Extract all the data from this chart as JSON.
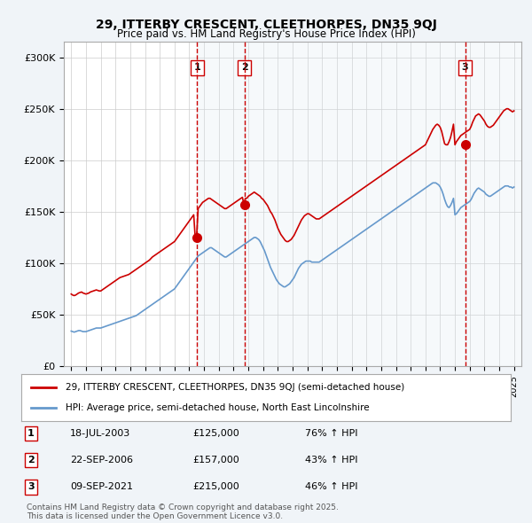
{
  "title1": "29, ITTERBY CRESCENT, CLEETHORPES, DN35 9QJ",
  "title2": "Price paid vs. HM Land Registry's House Price Index (HPI)",
  "bg_color": "#f0f4f8",
  "plot_bg_color": "#ffffff",
  "red_line_color": "#cc0000",
  "blue_line_color": "#6699cc",
  "sale_marker_color": "#cc0000",
  "annotation_shade_color": "#dce8f0",
  "annotation_line_color": "#cc0000",
  "ylabel_ticks": [
    "£0",
    "£50K",
    "£100K",
    "£150K",
    "£200K",
    "£250K",
    "£300K"
  ],
  "ytick_values": [
    0,
    50000,
    100000,
    150000,
    200000,
    250000,
    300000
  ],
  "ylim": [
    0,
    315000
  ],
  "xlim_start": 1994.5,
  "xlim_end": 2025.5,
  "sales": [
    {
      "label": "1",
      "date_num": 2003.54,
      "price": 125000,
      "date_str": "18-JUL-2003",
      "pct": "76%"
    },
    {
      "label": "2",
      "date_num": 2006.73,
      "price": 157000,
      "date_str": "22-SEP-2006",
      "pct": "43%"
    },
    {
      "label": "3",
      "date_num": 2021.69,
      "price": 215000,
      "date_str": "09-SEP-2021",
      "pct": "46%"
    }
  ],
  "legend_label_red": "29, ITTERBY CRESCENT, CLEETHORPES, DN35 9QJ (semi-detached house)",
  "legend_label_blue": "HPI: Average price, semi-detached house, North East Lincolnshire",
  "footnote": "Contains HM Land Registry data © Crown copyright and database right 2025.\nThis data is licensed under the Open Government Licence v3.0.",
  "red_line_data": {
    "x": [
      1995.0,
      1995.1,
      1995.2,
      1995.3,
      1995.4,
      1995.5,
      1995.6,
      1995.7,
      1995.8,
      1995.9,
      1996.0,
      1996.1,
      1996.2,
      1996.3,
      1996.4,
      1996.5,
      1996.6,
      1996.7,
      1996.8,
      1996.9,
      1997.0,
      1997.1,
      1997.2,
      1997.3,
      1997.4,
      1997.5,
      1997.6,
      1997.7,
      1997.8,
      1997.9,
      1998.0,
      1998.1,
      1998.2,
      1998.3,
      1998.4,
      1998.5,
      1998.6,
      1998.7,
      1998.8,
      1998.9,
      1999.0,
      1999.1,
      1999.2,
      1999.3,
      1999.4,
      1999.5,
      1999.6,
      1999.7,
      1999.8,
      1999.9,
      2000.0,
      2000.1,
      2000.2,
      2000.3,
      2000.4,
      2000.5,
      2000.6,
      2000.7,
      2000.8,
      2000.9,
      2001.0,
      2001.1,
      2001.2,
      2001.3,
      2001.4,
      2001.5,
      2001.6,
      2001.7,
      2001.8,
      2001.9,
      2002.0,
      2002.1,
      2002.2,
      2002.3,
      2002.4,
      2002.5,
      2002.6,
      2002.7,
      2002.8,
      2002.9,
      2003.0,
      2003.1,
      2003.2,
      2003.3,
      2003.4,
      2003.5,
      2003.6,
      2003.7,
      2003.8,
      2003.9,
      2004.0,
      2004.1,
      2004.2,
      2004.3,
      2004.4,
      2004.5,
      2004.6,
      2004.7,
      2004.8,
      2004.9,
      2005.0,
      2005.1,
      2005.2,
      2005.3,
      2005.4,
      2005.5,
      2005.6,
      2005.7,
      2005.8,
      2005.9,
      2006.0,
      2006.1,
      2006.2,
      2006.3,
      2006.4,
      2006.5,
      2006.6,
      2006.7,
      2006.8,
      2006.9,
      2007.0,
      2007.1,
      2007.2,
      2007.3,
      2007.4,
      2007.5,
      2007.6,
      2007.7,
      2007.8,
      2007.9,
      2008.0,
      2008.1,
      2008.2,
      2008.3,
      2008.4,
      2008.5,
      2008.6,
      2008.7,
      2008.8,
      2008.9,
      2009.0,
      2009.1,
      2009.2,
      2009.3,
      2009.4,
      2009.5,
      2009.6,
      2009.7,
      2009.8,
      2009.9,
      2010.0,
      2010.1,
      2010.2,
      2010.3,
      2010.4,
      2010.5,
      2010.6,
      2010.7,
      2010.8,
      2010.9,
      2011.0,
      2011.1,
      2011.2,
      2011.3,
      2011.4,
      2011.5,
      2011.6,
      2011.7,
      2011.8,
      2011.9,
      2012.0,
      2012.1,
      2012.2,
      2012.3,
      2012.4,
      2012.5,
      2012.6,
      2012.7,
      2012.8,
      2012.9,
      2013.0,
      2013.1,
      2013.2,
      2013.3,
      2013.4,
      2013.5,
      2013.6,
      2013.7,
      2013.8,
      2013.9,
      2014.0,
      2014.1,
      2014.2,
      2014.3,
      2014.4,
      2014.5,
      2014.6,
      2014.7,
      2014.8,
      2014.9,
      2015.0,
      2015.1,
      2015.2,
      2015.3,
      2015.4,
      2015.5,
      2015.6,
      2015.7,
      2015.8,
      2015.9,
      2016.0,
      2016.1,
      2016.2,
      2016.3,
      2016.4,
      2016.5,
      2016.6,
      2016.7,
      2016.8,
      2016.9,
      2017.0,
      2017.1,
      2017.2,
      2017.3,
      2017.4,
      2017.5,
      2017.6,
      2017.7,
      2017.8,
      2017.9,
      2018.0,
      2018.1,
      2018.2,
      2018.3,
      2018.4,
      2018.5,
      2018.6,
      2018.7,
      2018.8,
      2018.9,
      2019.0,
      2019.1,
      2019.2,
      2019.3,
      2019.4,
      2019.5,
      2019.6,
      2019.7,
      2019.8,
      2019.9,
      2020.0,
      2020.1,
      2020.2,
      2020.3,
      2020.4,
      2020.5,
      2020.6,
      2020.7,
      2020.8,
      2020.9,
      2021.0,
      2021.1,
      2021.2,
      2021.3,
      2021.4,
      2021.5,
      2021.6,
      2021.7,
      2021.8,
      2021.9,
      2022.0,
      2022.1,
      2022.2,
      2022.3,
      2022.4,
      2022.5,
      2022.6,
      2022.7,
      2022.8,
      2022.9,
      2023.0,
      2023.1,
      2023.2,
      2023.3,
      2023.4,
      2023.5,
      2023.6,
      2023.7,
      2023.8,
      2023.9,
      2024.0,
      2024.1,
      2024.2,
      2024.3,
      2024.4,
      2024.5,
      2024.6,
      2024.7,
      2024.8,
      2024.9,
      2025.0
    ],
    "y": [
      70000,
      69000,
      68500,
      69000,
      70000,
      71000,
      71500,
      72000,
      71000,
      70500,
      70000,
      70500,
      71000,
      72000,
      72500,
      73000,
      73500,
      74000,
      73500,
      73000,
      73000,
      74000,
      75000,
      76000,
      77000,
      78000,
      79000,
      80000,
      81000,
      82000,
      83000,
      84000,
      85000,
      86000,
      86500,
      87000,
      87500,
      88000,
      88500,
      89000,
      90000,
      91000,
      92000,
      93000,
      94000,
      95000,
      96000,
      97000,
      98000,
      99000,
      100000,
      101000,
      102000,
      103000,
      104500,
      106000,
      107000,
      108000,
      109000,
      110000,
      111000,
      112000,
      113000,
      114000,
      115000,
      116000,
      117000,
      118000,
      119000,
      120000,
      121000,
      123000,
      125000,
      127000,
      129000,
      131000,
      133000,
      135000,
      137000,
      139000,
      141000,
      143000,
      145000,
      147000,
      125000,
      127000,
      153000,
      155000,
      157000,
      159000,
      160000,
      161000,
      162000,
      163000,
      163000,
      162000,
      161000,
      160000,
      159000,
      158000,
      157000,
      156000,
      155000,
      154000,
      153000,
      153000,
      154000,
      155000,
      156000,
      157000,
      158000,
      159000,
      160000,
      161000,
      162000,
      163000,
      164000,
      157000,
      163000,
      163000,
      165000,
      166000,
      167000,
      168000,
      169000,
      168000,
      167000,
      166000,
      165000,
      163000,
      162000,
      160000,
      158000,
      156000,
      153000,
      150000,
      148000,
      145000,
      142000,
      138000,
      134000,
      131000,
      128000,
      126000,
      124000,
      122000,
      121000,
      121000,
      122000,
      123000,
      125000,
      127000,
      130000,
      133000,
      136000,
      139000,
      142000,
      144000,
      146000,
      147000,
      148000,
      148000,
      147000,
      146000,
      145000,
      144000,
      143000,
      143000,
      143000,
      144000,
      145000,
      146000,
      147000,
      148000,
      149000,
      150000,
      151000,
      152000,
      153000,
      154000,
      155000,
      156000,
      157000,
      158000,
      159000,
      160000,
      161000,
      162000,
      163000,
      164000,
      165000,
      166000,
      167000,
      168000,
      169000,
      170000,
      171000,
      172000,
      173000,
      174000,
      175000,
      176000,
      177000,
      178000,
      179000,
      180000,
      181000,
      182000,
      183000,
      184000,
      185000,
      186000,
      187000,
      188000,
      189000,
      190000,
      191000,
      192000,
      193000,
      194000,
      195000,
      196000,
      197000,
      198000,
      199000,
      200000,
      201000,
      202000,
      203000,
      204000,
      205000,
      206000,
      207000,
      208000,
      209000,
      210000,
      211000,
      212000,
      213000,
      214000,
      215000,
      218000,
      221000,
      224000,
      227000,
      230000,
      232000,
      234000,
      235000,
      234000,
      232000,
      228000,
      222000,
      216000,
      215000,
      215000,
      218000,
      222000,
      228000,
      235000,
      215000,
      218000,
      220000,
      222000,
      224000,
      225000,
      226000,
      227000,
      228000,
      229000,
      230000,
      233000,
      237000,
      240000,
      243000,
      244000,
      245000,
      244000,
      242000,
      240000,
      238000,
      235000,
      233000,
      232000,
      232000,
      233000,
      234000,
      236000,
      238000,
      240000,
      242000,
      244000,
      246000,
      248000,
      249000,
      250000,
      250000,
      249000,
      248000,
      247000,
      248000
    ]
  },
  "blue_line_data": {
    "x": [
      1995.0,
      1995.1,
      1995.2,
      1995.3,
      1995.4,
      1995.5,
      1995.6,
      1995.7,
      1995.8,
      1995.9,
      1996.0,
      1996.1,
      1996.2,
      1996.3,
      1996.4,
      1996.5,
      1996.6,
      1996.7,
      1996.8,
      1996.9,
      1997.0,
      1997.1,
      1997.2,
      1997.3,
      1997.4,
      1997.5,
      1997.6,
      1997.7,
      1997.8,
      1997.9,
      1998.0,
      1998.1,
      1998.2,
      1998.3,
      1998.4,
      1998.5,
      1998.6,
      1998.7,
      1998.8,
      1998.9,
      1999.0,
      1999.1,
      1999.2,
      1999.3,
      1999.4,
      1999.5,
      1999.6,
      1999.7,
      1999.8,
      1999.9,
      2000.0,
      2000.1,
      2000.2,
      2000.3,
      2000.4,
      2000.5,
      2000.6,
      2000.7,
      2000.8,
      2000.9,
      2001.0,
      2001.1,
      2001.2,
      2001.3,
      2001.4,
      2001.5,
      2001.6,
      2001.7,
      2001.8,
      2001.9,
      2002.0,
      2002.1,
      2002.2,
      2002.3,
      2002.4,
      2002.5,
      2002.6,
      2002.7,
      2002.8,
      2002.9,
      2003.0,
      2003.1,
      2003.2,
      2003.3,
      2003.4,
      2003.5,
      2003.6,
      2003.7,
      2003.8,
      2003.9,
      2004.0,
      2004.1,
      2004.2,
      2004.3,
      2004.4,
      2004.5,
      2004.6,
      2004.7,
      2004.8,
      2004.9,
      2005.0,
      2005.1,
      2005.2,
      2005.3,
      2005.4,
      2005.5,
      2005.6,
      2005.7,
      2005.8,
      2005.9,
      2006.0,
      2006.1,
      2006.2,
      2006.3,
      2006.4,
      2006.5,
      2006.6,
      2006.7,
      2006.8,
      2006.9,
      2007.0,
      2007.1,
      2007.2,
      2007.3,
      2007.4,
      2007.5,
      2007.6,
      2007.7,
      2007.8,
      2007.9,
      2008.0,
      2008.1,
      2008.2,
      2008.3,
      2008.4,
      2008.5,
      2008.6,
      2008.7,
      2008.8,
      2008.9,
      2009.0,
      2009.1,
      2009.2,
      2009.3,
      2009.4,
      2009.5,
      2009.6,
      2009.7,
      2009.8,
      2009.9,
      2010.0,
      2010.1,
      2010.2,
      2010.3,
      2010.4,
      2010.5,
      2010.6,
      2010.7,
      2010.8,
      2010.9,
      2011.0,
      2011.1,
      2011.2,
      2011.3,
      2011.4,
      2011.5,
      2011.6,
      2011.7,
      2011.8,
      2011.9,
      2012.0,
      2012.1,
      2012.2,
      2012.3,
      2012.4,
      2012.5,
      2012.6,
      2012.7,
      2012.8,
      2012.9,
      2013.0,
      2013.1,
      2013.2,
      2013.3,
      2013.4,
      2013.5,
      2013.6,
      2013.7,
      2013.8,
      2013.9,
      2014.0,
      2014.1,
      2014.2,
      2014.3,
      2014.4,
      2014.5,
      2014.6,
      2014.7,
      2014.8,
      2014.9,
      2015.0,
      2015.1,
      2015.2,
      2015.3,
      2015.4,
      2015.5,
      2015.6,
      2015.7,
      2015.8,
      2015.9,
      2016.0,
      2016.1,
      2016.2,
      2016.3,
      2016.4,
      2016.5,
      2016.6,
      2016.7,
      2016.8,
      2016.9,
      2017.0,
      2017.1,
      2017.2,
      2017.3,
      2017.4,
      2017.5,
      2017.6,
      2017.7,
      2017.8,
      2017.9,
      2018.0,
      2018.1,
      2018.2,
      2018.3,
      2018.4,
      2018.5,
      2018.6,
      2018.7,
      2018.8,
      2018.9,
      2019.0,
      2019.1,
      2019.2,
      2019.3,
      2019.4,
      2019.5,
      2019.6,
      2019.7,
      2019.8,
      2019.9,
      2020.0,
      2020.1,
      2020.2,
      2020.3,
      2020.4,
      2020.5,
      2020.6,
      2020.7,
      2020.8,
      2020.9,
      2021.0,
      2021.1,
      2021.2,
      2021.3,
      2021.4,
      2021.5,
      2021.6,
      2021.7,
      2021.8,
      2021.9,
      2022.0,
      2022.1,
      2022.2,
      2022.3,
      2022.4,
      2022.5,
      2022.6,
      2022.7,
      2022.8,
      2022.9,
      2023.0,
      2023.1,
      2023.2,
      2023.3,
      2023.4,
      2023.5,
      2023.6,
      2023.7,
      2023.8,
      2023.9,
      2024.0,
      2024.1,
      2024.2,
      2024.3,
      2024.4,
      2024.5,
      2024.6,
      2024.7,
      2024.8,
      2024.9,
      2025.0
    ],
    "y": [
      34000,
      33500,
      33000,
      33500,
      34000,
      34500,
      34500,
      34000,
      33500,
      33500,
      33500,
      34000,
      34500,
      35000,
      35500,
      36000,
      36500,
      37000,
      37000,
      37000,
      37000,
      37500,
      38000,
      38500,
      39000,
      39500,
      40000,
      40500,
      41000,
      41500,
      42000,
      42500,
      43000,
      43500,
      44000,
      44500,
      45000,
      45500,
      46000,
      46500,
      47000,
      47500,
      48000,
      48500,
      49000,
      50000,
      51000,
      52000,
      53000,
      54000,
      55000,
      56000,
      57000,
      58000,
      59000,
      60000,
      61000,
      62000,
      63000,
      64000,
      65000,
      66000,
      67000,
      68000,
      69000,
      70000,
      71000,
      72000,
      73000,
      74000,
      75000,
      77000,
      79000,
      81000,
      83000,
      85000,
      87000,
      89000,
      91000,
      93000,
      95000,
      97000,
      99000,
      101000,
      103000,
      105000,
      107000,
      108000,
      109000,
      110000,
      111000,
      112000,
      113000,
      114000,
      115000,
      115000,
      114000,
      113000,
      112000,
      111000,
      110000,
      109000,
      108000,
      107000,
      106000,
      106000,
      107000,
      108000,
      109000,
      110000,
      111000,
      112000,
      113000,
      114000,
      115000,
      116000,
      117000,
      118000,
      119000,
      120000,
      121000,
      122000,
      123000,
      124000,
      125000,
      125000,
      124000,
      123000,
      121000,
      118000,
      115000,
      112000,
      108000,
      104000,
      100000,
      96000,
      93000,
      90000,
      87000,
      84000,
      82000,
      80000,
      79000,
      78000,
      77000,
      77000,
      78000,
      79000,
      80000,
      82000,
      84000,
      86000,
      89000,
      92000,
      95000,
      97000,
      99000,
      100000,
      101000,
      102000,
      102000,
      102000,
      102000,
      101000,
      101000,
      101000,
      101000,
      101000,
      101000,
      102000,
      103000,
      104000,
      105000,
      106000,
      107000,
      108000,
      109000,
      110000,
      111000,
      112000,
      113000,
      114000,
      115000,
      116000,
      117000,
      118000,
      119000,
      120000,
      121000,
      122000,
      123000,
      124000,
      125000,
      126000,
      127000,
      128000,
      129000,
      130000,
      131000,
      132000,
      133000,
      134000,
      135000,
      136000,
      137000,
      138000,
      139000,
      140000,
      141000,
      142000,
      143000,
      144000,
      145000,
      146000,
      147000,
      148000,
      149000,
      150000,
      151000,
      152000,
      153000,
      154000,
      155000,
      156000,
      157000,
      158000,
      159000,
      160000,
      161000,
      162000,
      163000,
      164000,
      165000,
      166000,
      167000,
      168000,
      169000,
      170000,
      171000,
      172000,
      173000,
      174000,
      175000,
      176000,
      177000,
      178000,
      178000,
      178000,
      177000,
      176000,
      174000,
      171000,
      167000,
      162000,
      158000,
      155000,
      154000,
      156000,
      159000,
      163000,
      147000,
      148000,
      150000,
      152000,
      154000,
      155000,
      156000,
      157000,
      158000,
      159000,
      160000,
      162000,
      165000,
      168000,
      170000,
      172000,
      173000,
      172000,
      171000,
      170000,
      169000,
      167000,
      166000,
      165000,
      165000,
      166000,
      167000,
      168000,
      169000,
      170000,
      171000,
      172000,
      173000,
      174000,
      175000,
      175000,
      175000,
      174000,
      174000,
      173000,
      174000
    ]
  }
}
